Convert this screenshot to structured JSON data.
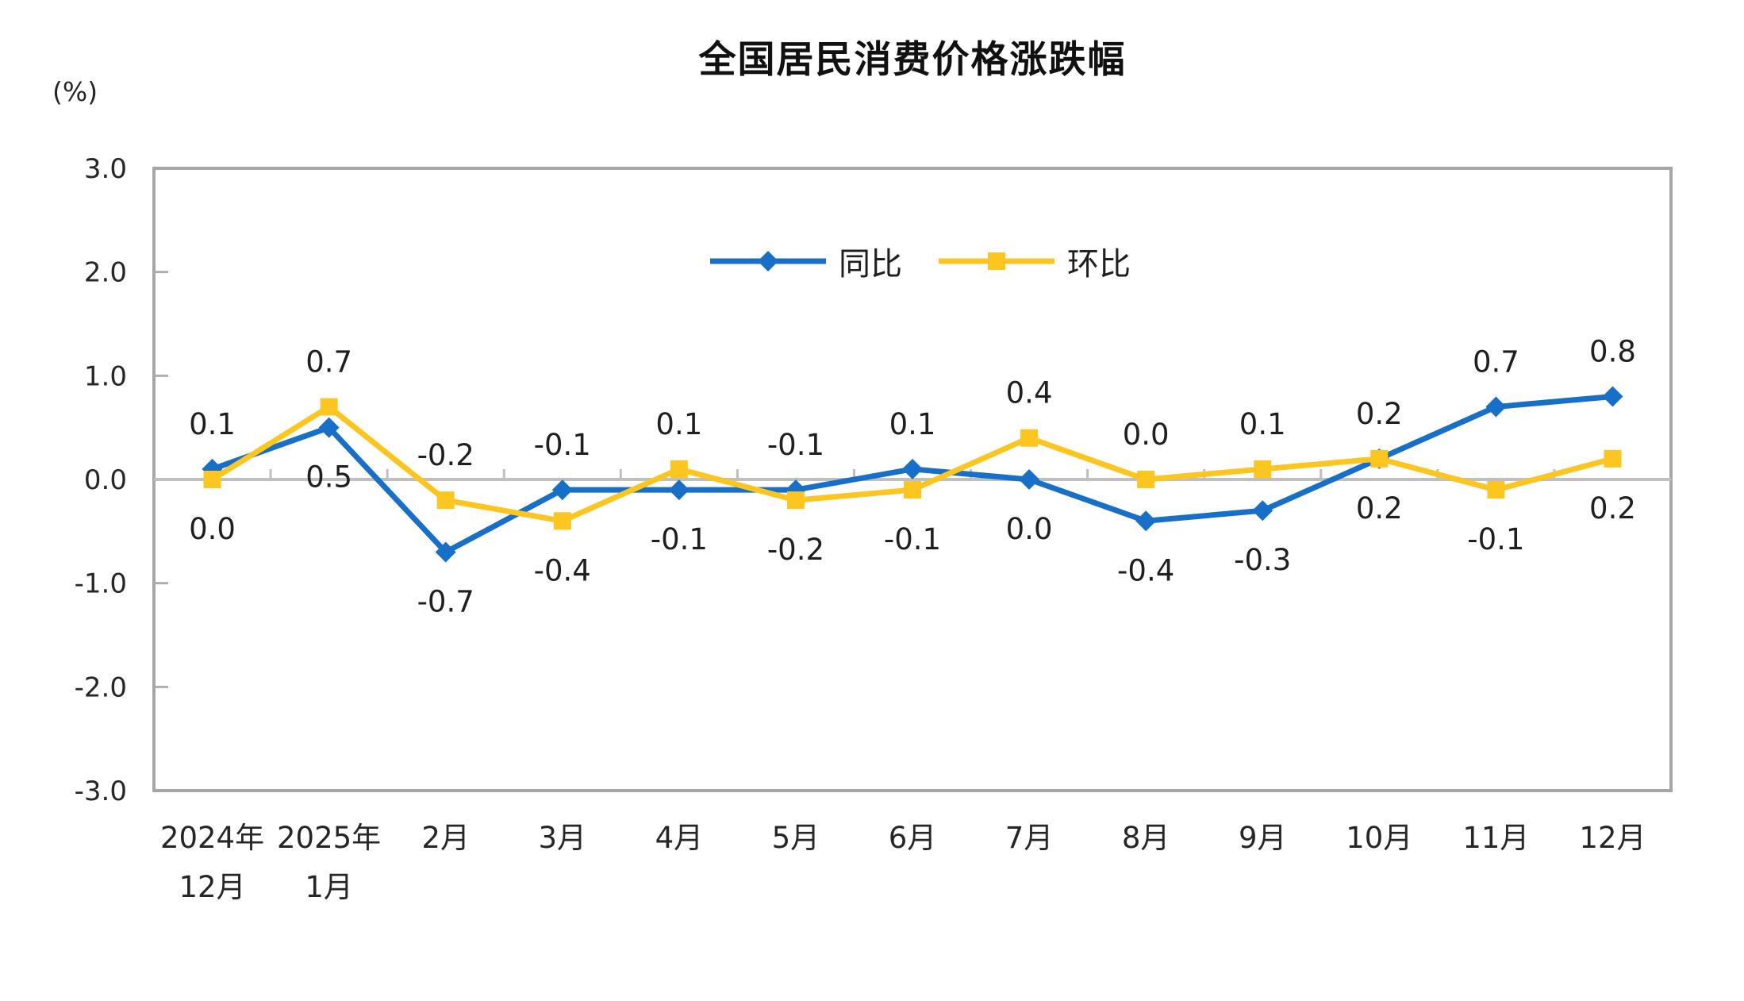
{
  "title": "全国居民消费价格涨跌幅",
  "y_axis_unit": "(%)",
  "legend": {
    "items": [
      {
        "label": "同比",
        "marker": "diamond"
      },
      {
        "label": "环比",
        "marker": "square"
      }
    ]
  },
  "chart_data": {
    "type": "line",
    "title": "全国居民消费价格涨跌幅",
    "ylabel": "(%)",
    "ylim": [
      -3.0,
      3.0
    ],
    "yticks": [
      3.0,
      2.0,
      1.0,
      0.0,
      -1.0,
      -2.0,
      -3.0
    ],
    "grid": false,
    "zero_line": true,
    "legend_position": "top-center-inside",
    "categories": [
      [
        "2024年",
        "12月"
      ],
      [
        "2025年",
        "1月"
      ],
      [
        "2月"
      ],
      [
        "3月"
      ],
      [
        "4月"
      ],
      [
        "5月"
      ],
      [
        "6月"
      ],
      [
        "7月"
      ],
      [
        "8月"
      ],
      [
        "9月"
      ],
      [
        "10月"
      ],
      [
        "11月"
      ],
      [
        "12月"
      ]
    ],
    "series": [
      {
        "name": "同比",
        "marker": "diamond",
        "color": "#176FC8",
        "values": [
          0.1,
          0.5,
          -0.7,
          -0.1,
          -0.1,
          -0.1,
          0.1,
          0.0,
          -0.4,
          -0.3,
          0.2,
          0.7,
          0.8
        ]
      },
      {
        "name": "环比",
        "marker": "square",
        "color": "#FCC520",
        "values": [
          0.0,
          0.7,
          -0.2,
          -0.4,
          0.1,
          -0.2,
          -0.1,
          0.4,
          0.0,
          0.1,
          0.2,
          -0.1,
          0.2
        ]
      }
    ],
    "colors": {
      "frame": "#A6A6A6",
      "zero_line": "#BFBFBF",
      "tick": "#ADADAD",
      "data_label": "#1f1f1f",
      "axis_label": "#262626"
    }
  }
}
